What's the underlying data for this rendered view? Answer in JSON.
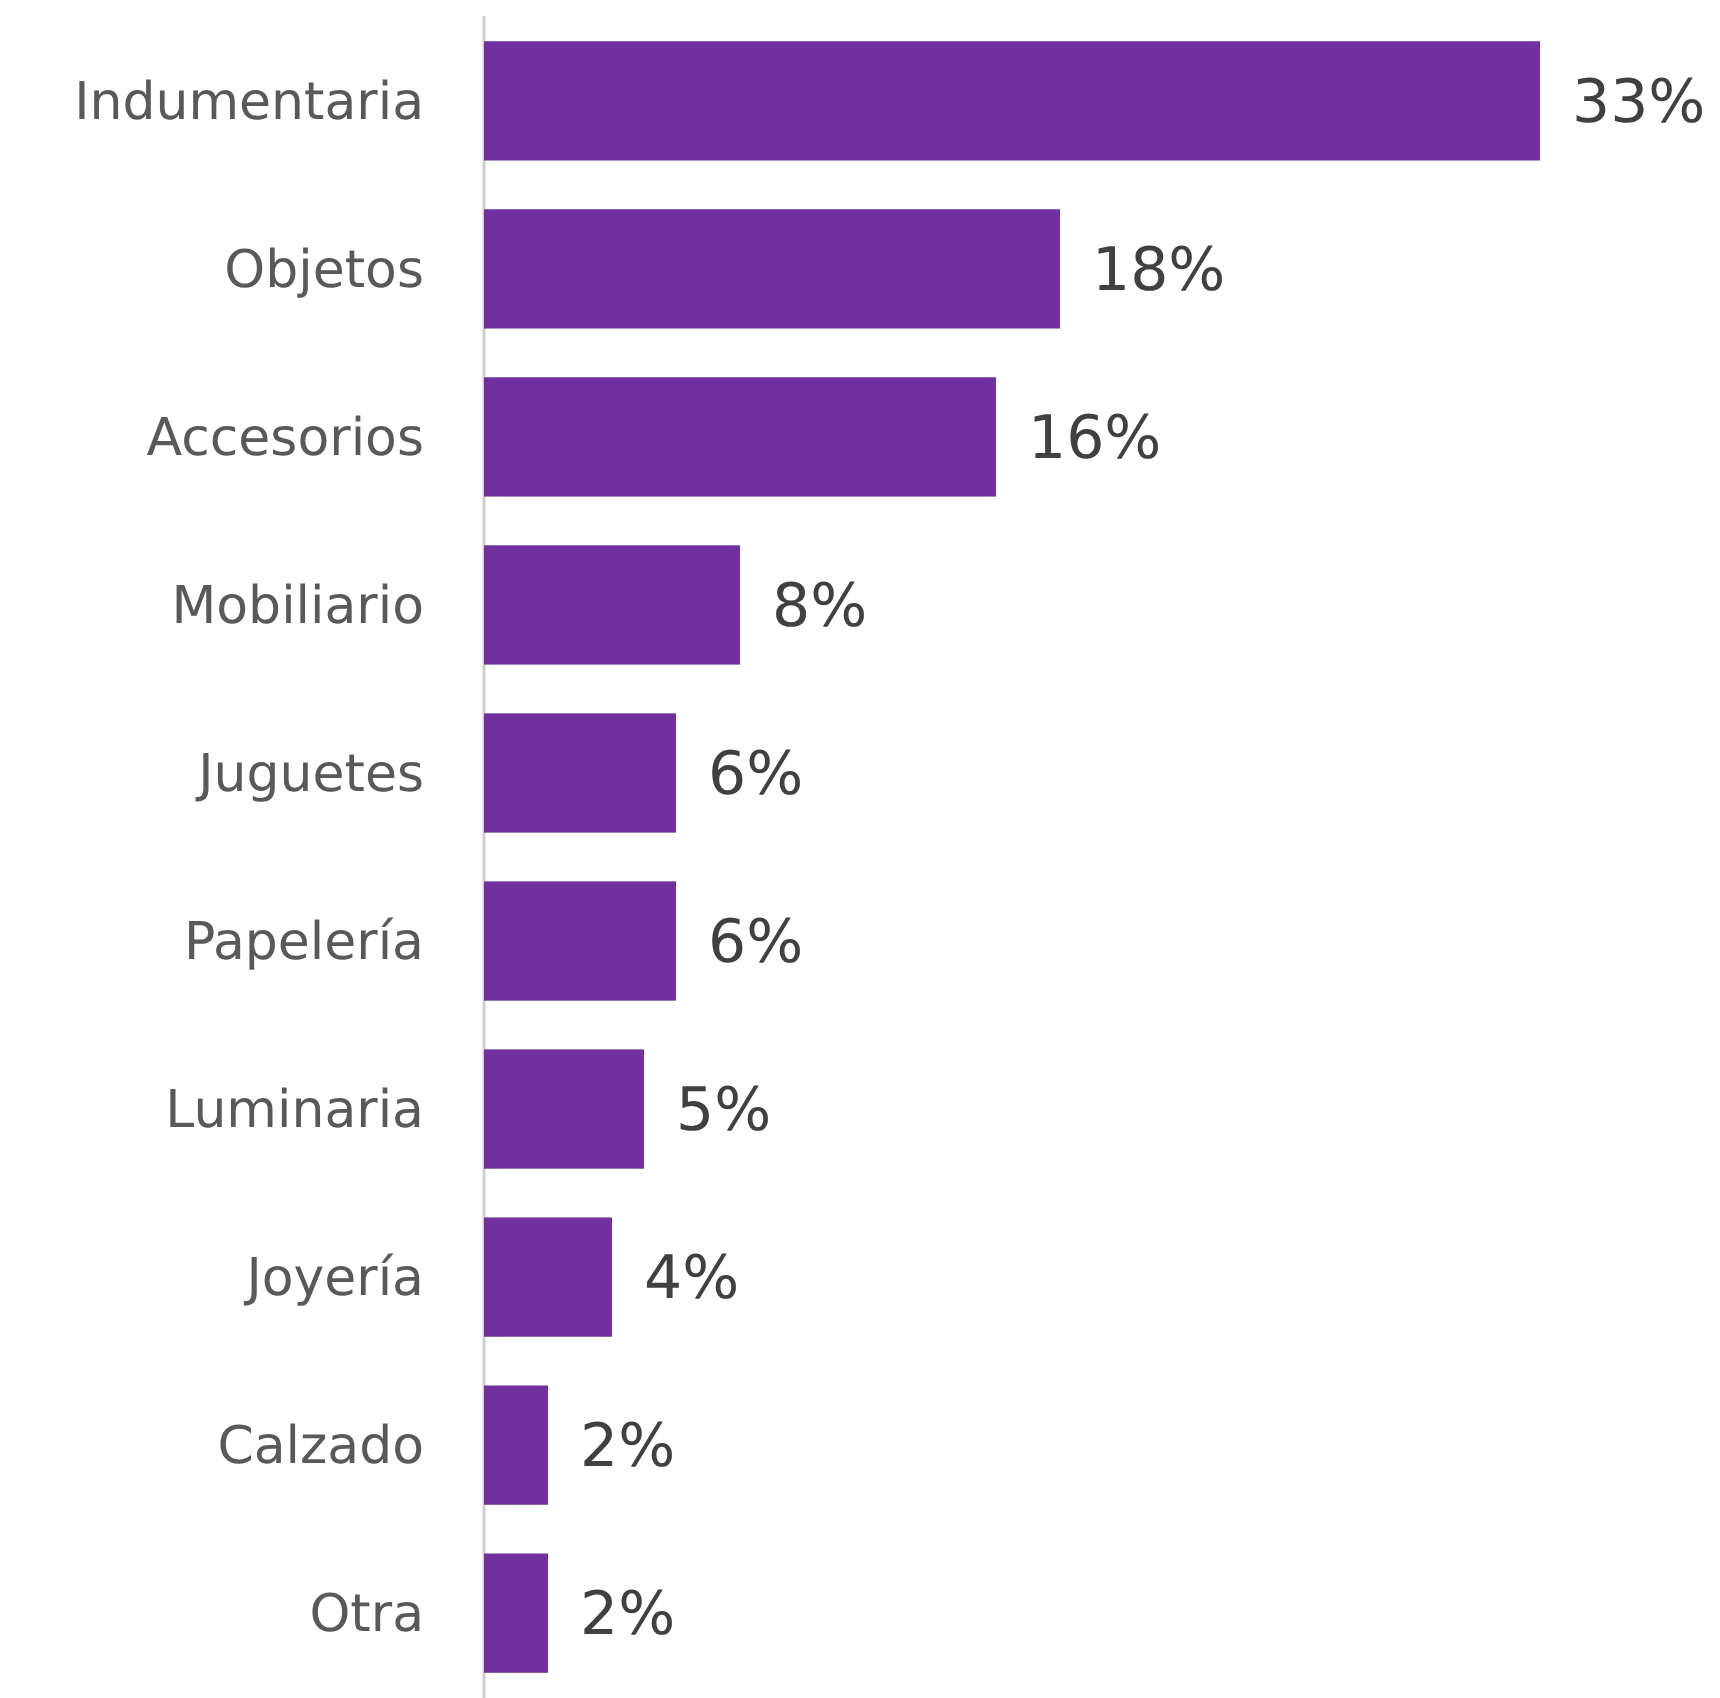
{
  "chart_data": {
    "type": "bar",
    "orientation": "horizontal",
    "categories": [
      "Indumentaria",
      "Objetos",
      "Accesorios",
      "Mobiliario",
      "Juguetes",
      "Papelería",
      "Luminaria",
      "Joyería",
      "Calzado",
      "Otra"
    ],
    "values": [
      33,
      18,
      16,
      8,
      6,
      6,
      5,
      4,
      2,
      2
    ],
    "value_labels": [
      "33%",
      "18%",
      "16%",
      "8%",
      "6%",
      "6%",
      "5%",
      "4%",
      "2%",
      "2%"
    ],
    "color": "#7030a0"
  }
}
